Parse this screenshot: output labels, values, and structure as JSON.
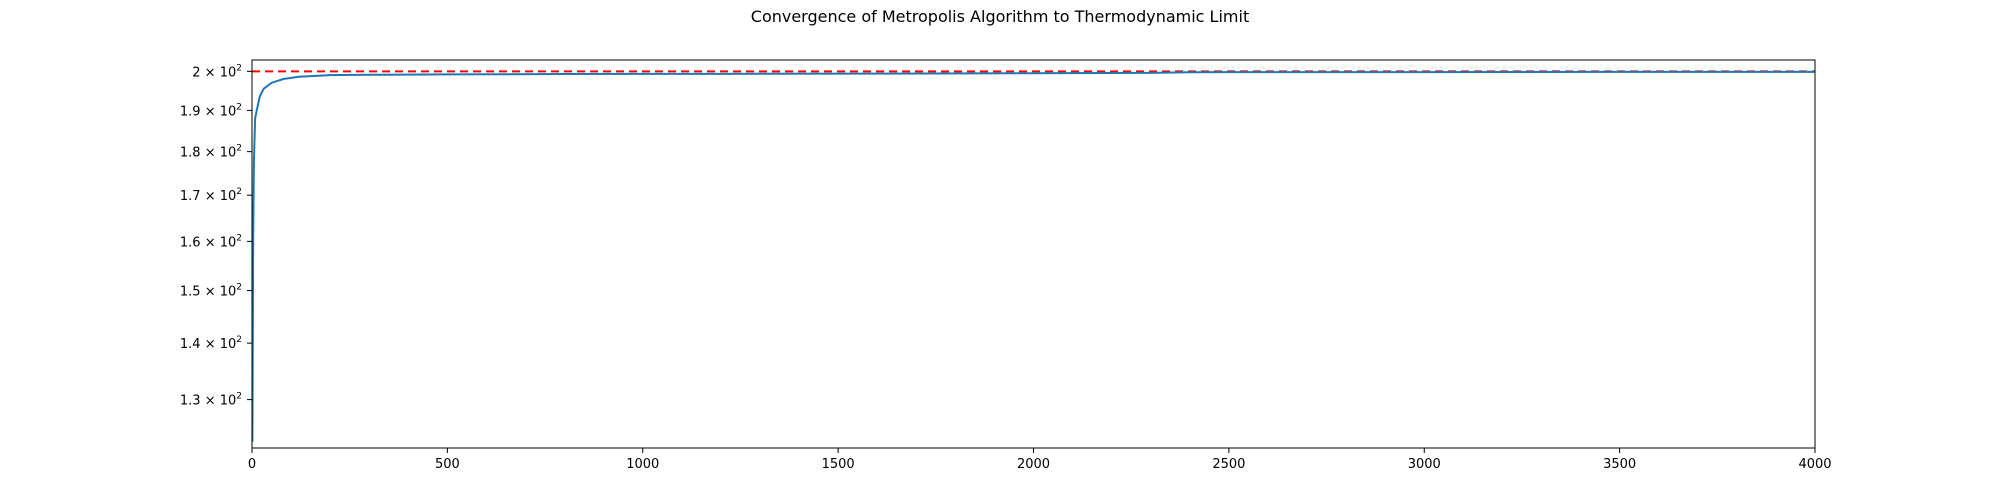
{
  "chart_data": {
    "type": "line",
    "title": "Convergence of Metropolis Algorithm to Thermodynamic Limit",
    "xlabel": "",
    "ylabel": "",
    "xlim": [
      0,
      4000
    ],
    "ylim": [
      122,
      203
    ],
    "yscale": "log",
    "grid": false,
    "x_ticks": [
      0,
      500,
      1000,
      1500,
      2000,
      2500,
      3000,
      3500,
      4000
    ],
    "x_tick_labels": [
      "0",
      "500",
      "1000",
      "1500",
      "2000",
      "2500",
      "3000",
      "3500",
      "4000"
    ],
    "y_ticks": [
      {
        "value": 200,
        "mantissa": "2",
        "exponent": "2"
      },
      {
        "value": 190,
        "mantissa": "1.9",
        "exponent": "2"
      },
      {
        "value": 180,
        "mantissa": "1.8",
        "exponent": "2"
      },
      {
        "value": 170,
        "mantissa": "1.7",
        "exponent": "2"
      },
      {
        "value": 160,
        "mantissa": "1.6",
        "exponent": "2"
      },
      {
        "value": 150,
        "mantissa": "1.5",
        "exponent": "2"
      },
      {
        "value": 140,
        "mantissa": "1.4",
        "exponent": "2"
      },
      {
        "value": 130,
        "mantissa": "1.3",
        "exponent": "2"
      }
    ],
    "series": [
      {
        "color": "#1f77b4",
        "style": "solid",
        "x": [
          1,
          3,
          5,
          8,
          12,
          20,
          30,
          50,
          80,
          120,
          200,
          300,
          500,
          800,
          1200,
          1600,
          2000,
          2300,
          2400,
          2500,
          3000,
          3500,
          4000
        ],
        "y": [
          123,
          160,
          178,
          188,
          190,
          193.5,
          195.5,
          197,
          198,
          198.6,
          199.0,
          199.1,
          199.2,
          199.3,
          199.35,
          199.4,
          199.5,
          199.6,
          199.75,
          199.8,
          199.8,
          199.85,
          199.85
        ]
      }
    ],
    "reference_line": {
      "y": 200,
      "color": "#ff0000",
      "style": "dashed"
    }
  }
}
